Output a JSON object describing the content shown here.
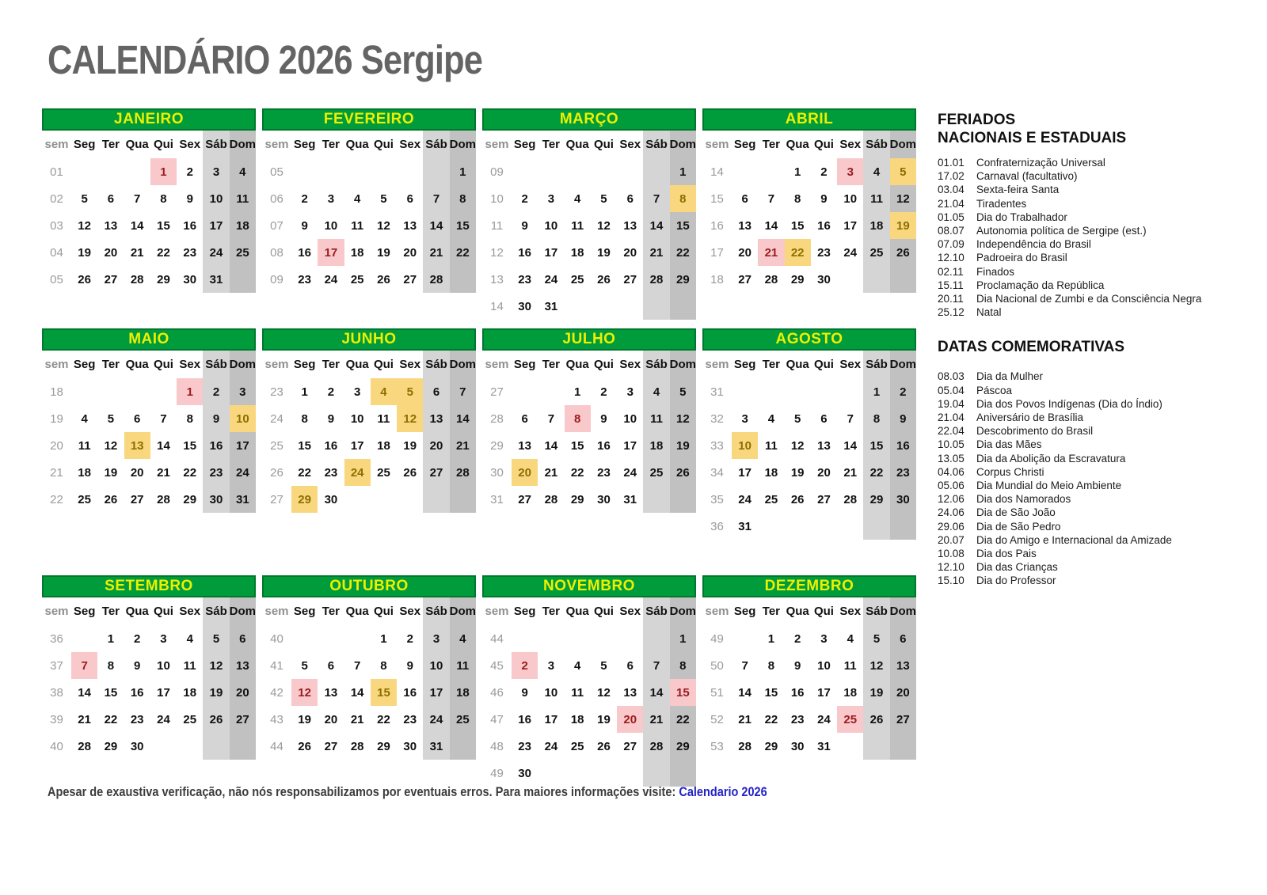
{
  "title": "CALENDÁRIO 2026 Sergipe",
  "day_headers": [
    "sem",
    "Seg",
    "Ter",
    "Qua",
    "Qui",
    "Sex",
    "Sáb",
    "Dom"
  ],
  "colors": {
    "header_green": "#009c3b",
    "header_text_yellow": "#eef000",
    "holiday_bg": "#f8c8cb",
    "holiday_text": "#9b1b1e",
    "commemorative_bg": "#f8d77e",
    "commemorative_text": "#8d6e00",
    "saturday_bg": "#d5d5d5",
    "sunday_bg": "#c1c1c1",
    "link_blue": "#2323c8"
  },
  "months": [
    {
      "id": "janeiro",
      "name": "JANEIRO",
      "week_nums": [
        "01",
        "02",
        "03",
        "04",
        "05"
      ],
      "weeks": [
        [
          "",
          "",
          "",
          1,
          2,
          3,
          4
        ],
        [
          5,
          6,
          7,
          8,
          9,
          10,
          11
        ],
        [
          12,
          13,
          14,
          15,
          16,
          17,
          18
        ],
        [
          19,
          20,
          21,
          22,
          23,
          24,
          25
        ],
        [
          26,
          27,
          28,
          29,
          30,
          31,
          ""
        ]
      ],
      "pink": [
        1
      ],
      "yellow": []
    },
    {
      "id": "fevereiro",
      "name": "FEVEREIRO",
      "week_nums": [
        "05",
        "06",
        "07",
        "08",
        "09"
      ],
      "weeks": [
        [
          "",
          "",
          "",
          "",
          "",
          "",
          1
        ],
        [
          2,
          3,
          4,
          5,
          6,
          7,
          8
        ],
        [
          9,
          10,
          11,
          12,
          13,
          14,
          15
        ],
        [
          16,
          17,
          18,
          19,
          20,
          21,
          22
        ],
        [
          23,
          24,
          25,
          26,
          27,
          28,
          ""
        ]
      ],
      "pink": [
        17
      ],
      "yellow": []
    },
    {
      "id": "marco",
      "name": "MARÇO",
      "week_nums": [
        "09",
        "10",
        "11",
        "12",
        "13",
        "14"
      ],
      "weeks": [
        [
          "",
          "",
          "",
          "",
          "",
          "",
          1
        ],
        [
          2,
          3,
          4,
          5,
          6,
          7,
          8
        ],
        [
          9,
          10,
          11,
          12,
          13,
          14,
          15
        ],
        [
          16,
          17,
          18,
          19,
          20,
          21,
          22
        ],
        [
          23,
          24,
          25,
          26,
          27,
          28,
          29
        ],
        [
          30,
          31,
          "",
          "",
          "",
          "",
          ""
        ]
      ],
      "pink": [],
      "yellow": [
        8
      ]
    },
    {
      "id": "abril",
      "name": "ABRIL",
      "week_nums": [
        "14",
        "15",
        "16",
        "17",
        "18"
      ],
      "weeks": [
        [
          "",
          "",
          1,
          2,
          3,
          4,
          5
        ],
        [
          6,
          7,
          8,
          9,
          10,
          11,
          12
        ],
        [
          13,
          14,
          15,
          16,
          17,
          18,
          19
        ],
        [
          20,
          21,
          22,
          23,
          24,
          25,
          26
        ],
        [
          27,
          28,
          29,
          30,
          "",
          "",
          ""
        ]
      ],
      "pink": [
        3,
        21
      ],
      "yellow": [
        5,
        19,
        22
      ]
    },
    {
      "id": "maio",
      "name": "MAIO",
      "week_nums": [
        "18",
        "19",
        "20",
        "21",
        "22"
      ],
      "weeks": [
        [
          "",
          "",
          "",
          "",
          1,
          2,
          3
        ],
        [
          4,
          5,
          6,
          7,
          8,
          9,
          10
        ],
        [
          11,
          12,
          13,
          14,
          15,
          16,
          17
        ],
        [
          18,
          19,
          20,
          21,
          22,
          23,
          24
        ],
        [
          25,
          26,
          27,
          28,
          29,
          30,
          31
        ]
      ],
      "pink": [
        1
      ],
      "yellow": [
        10,
        13
      ]
    },
    {
      "id": "junho",
      "name": "JUNHO",
      "week_nums": [
        "23",
        "24",
        "25",
        "26",
        "27"
      ],
      "weeks": [
        [
          1,
          2,
          3,
          4,
          5,
          6,
          7
        ],
        [
          8,
          9,
          10,
          11,
          12,
          13,
          14
        ],
        [
          15,
          16,
          17,
          18,
          19,
          20,
          21
        ],
        [
          22,
          23,
          24,
          25,
          26,
          27,
          28
        ],
        [
          29,
          30,
          "",
          "",
          "",
          "",
          ""
        ]
      ],
      "pink": [],
      "yellow": [
        4,
        5,
        12,
        24,
        29
      ]
    },
    {
      "id": "julho",
      "name": "JULHO",
      "week_nums": [
        "27",
        "28",
        "29",
        "30",
        "31"
      ],
      "weeks": [
        [
          "",
          "",
          1,
          2,
          3,
          4,
          5
        ],
        [
          6,
          7,
          8,
          9,
          10,
          11,
          12
        ],
        [
          13,
          14,
          15,
          16,
          17,
          18,
          19
        ],
        [
          20,
          21,
          22,
          23,
          24,
          25,
          26
        ],
        [
          27,
          28,
          29,
          30,
          31,
          "",
          ""
        ]
      ],
      "pink": [
        8
      ],
      "yellow": [
        20
      ]
    },
    {
      "id": "agosto",
      "name": "AGOSTO",
      "week_nums": [
        "31",
        "32",
        "33",
        "34",
        "35",
        "36"
      ],
      "weeks": [
        [
          "",
          "",
          "",
          "",
          "",
          1,
          2
        ],
        [
          3,
          4,
          5,
          6,
          7,
          8,
          9
        ],
        [
          10,
          11,
          12,
          13,
          14,
          15,
          16
        ],
        [
          17,
          18,
          19,
          20,
          21,
          22,
          23
        ],
        [
          24,
          25,
          26,
          27,
          28,
          29,
          30
        ],
        [
          31,
          "",
          "",
          "",
          "",
          "",
          ""
        ]
      ],
      "pink": [],
      "yellow": [
        10
      ]
    },
    {
      "id": "setembro",
      "name": "SETEMBRO",
      "week_nums": [
        "36",
        "37",
        "38",
        "39",
        "40"
      ],
      "weeks": [
        [
          "",
          1,
          2,
          3,
          4,
          5,
          6
        ],
        [
          7,
          8,
          9,
          10,
          11,
          12,
          13
        ],
        [
          14,
          15,
          16,
          17,
          18,
          19,
          20
        ],
        [
          21,
          22,
          23,
          24,
          25,
          26,
          27
        ],
        [
          28,
          29,
          30,
          "",
          "",
          "",
          ""
        ]
      ],
      "pink": [
        7
      ],
      "yellow": []
    },
    {
      "id": "outubro",
      "name": "OUTUBRO",
      "week_nums": [
        "40",
        "41",
        "42",
        "43",
        "44"
      ],
      "weeks": [
        [
          "",
          "",
          "",
          1,
          2,
          3,
          4
        ],
        [
          5,
          6,
          7,
          8,
          9,
          10,
          11
        ],
        [
          12,
          13,
          14,
          15,
          16,
          17,
          18
        ],
        [
          19,
          20,
          21,
          22,
          23,
          24,
          25
        ],
        [
          26,
          27,
          28,
          29,
          30,
          31,
          ""
        ]
      ],
      "pink": [
        12
      ],
      "yellow": [
        15
      ]
    },
    {
      "id": "novembro",
      "name": "NOVEMBRO",
      "week_nums": [
        "44",
        "45",
        "46",
        "47",
        "48",
        "49"
      ],
      "weeks": [
        [
          "",
          "",
          "",
          "",
          "",
          "",
          1
        ],
        [
          2,
          3,
          4,
          5,
          6,
          7,
          8
        ],
        [
          9,
          10,
          11,
          12,
          13,
          14,
          15
        ],
        [
          16,
          17,
          18,
          19,
          20,
          21,
          22
        ],
        [
          23,
          24,
          25,
          26,
          27,
          28,
          29
        ],
        [
          30,
          "",
          "",
          "",
          "",
          "",
          ""
        ]
      ],
      "pink": [
        2,
        15,
        20
      ],
      "yellow": []
    },
    {
      "id": "dezembro",
      "name": "DEZEMBRO",
      "week_nums": [
        "49",
        "50",
        "51",
        "52",
        "53"
      ],
      "weeks": [
        [
          "",
          1,
          2,
          3,
          4,
          5,
          6
        ],
        [
          7,
          8,
          9,
          10,
          11,
          12,
          13
        ],
        [
          14,
          15,
          16,
          17,
          18,
          19,
          20
        ],
        [
          21,
          22,
          23,
          24,
          25,
          26,
          27
        ],
        [
          28,
          29,
          30,
          31,
          "",
          "",
          ""
        ]
      ],
      "pink": [
        25
      ],
      "yellow": []
    }
  ],
  "feriados": {
    "title_line1": "FERIADOS",
    "title_line2": "NACIONAIS E ESTADUAIS",
    "items": [
      {
        "date": "01.01",
        "name": "Confraternização Universal"
      },
      {
        "date": "17.02",
        "name": "Carnaval (facultativo)"
      },
      {
        "date": "03.04",
        "name": "Sexta-feira Santa"
      },
      {
        "date": "21.04",
        "name": "Tiradentes"
      },
      {
        "date": "01.05",
        "name": "Dia do Trabalhador"
      },
      {
        "date": "08.07",
        "name": "Autonomia política de Sergipe (est.)"
      },
      {
        "date": "07.09",
        "name": "Independência do Brasil"
      },
      {
        "date": "12.10",
        "name": "Padroeira do Brasil"
      },
      {
        "date": "02.11",
        "name": "Finados"
      },
      {
        "date": "15.11",
        "name": "Proclamação da República"
      },
      {
        "date": "20.11",
        "name": "Dia Nacional de Zumbi e da Consciência Negra"
      },
      {
        "date": "25.12",
        "name": "Natal"
      }
    ]
  },
  "datas_comemorativas": {
    "title": "DATAS COMEMORATIVAS",
    "items": [
      {
        "date": "08.03",
        "name": "Dia da Mulher"
      },
      {
        "date": "05.04",
        "name": "Páscoa"
      },
      {
        "date": "19.04",
        "name": "Dia dos Povos Indígenas (Dia do Índio)"
      },
      {
        "date": "21.04",
        "name": "Aniversário de Brasília"
      },
      {
        "date": "22.04",
        "name": "Descobrimento do Brasil"
      },
      {
        "date": "10.05",
        "name": "Dia das Mães"
      },
      {
        "date": "13.05",
        "name": "Dia da Abolição da Escravatura"
      },
      {
        "date": "04.06",
        "name": "Corpus Christi"
      },
      {
        "date": "05.06",
        "name": "Dia Mundial do Meio Ambiente"
      },
      {
        "date": "12.06",
        "name": "Dia dos Namorados"
      },
      {
        "date": "24.06",
        "name": "Dia de São João"
      },
      {
        "date": "29.06",
        "name": "Dia de São Pedro"
      },
      {
        "date": "20.07",
        "name": "Dia do Amigo e Internacional da Amizade"
      },
      {
        "date": "10.08",
        "name": "Dia dos Pais"
      },
      {
        "date": "12.10",
        "name": "Dia das Crianças"
      },
      {
        "date": "15.10",
        "name": "Dia do Professor"
      }
    ]
  },
  "footer": {
    "text": "Apesar de exaustiva verificação, não nós responsabilizamos por eventuais erros. Para maiores informações visite:",
    "link_label": "Calendario 2026"
  }
}
